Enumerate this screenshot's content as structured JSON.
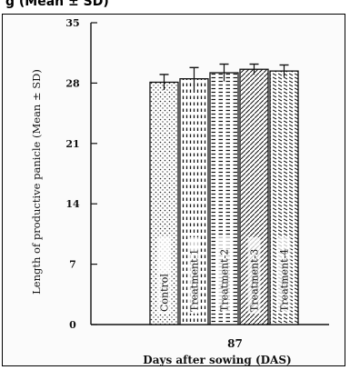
{
  "top_caption": "g (Mean ± SD)",
  "chart_data": {
    "type": "bar",
    "title": "",
    "xlabel": "Days after sowing (DAS)",
    "ylabel": "Length of productive panicle (Mean ± SD)",
    "x_tick": "87",
    "ylim": [
      0,
      35
    ],
    "yticks": [
      "0",
      "7",
      "14",
      "21",
      "28",
      "35"
    ],
    "grid": false,
    "series": [
      {
        "name": "Control",
        "value": 28.1,
        "sd": 0.9
      },
      {
        "name": "Treatment-1",
        "value": 28.5,
        "sd": 1.3
      },
      {
        "name": "Treatment-2",
        "value": 29.2,
        "sd": 1.0
      },
      {
        "name": "Treatment-3",
        "value": 29.6,
        "sd": 0.6
      },
      {
        "name": "Treatment-4",
        "value": 29.4,
        "sd": 0.7
      }
    ],
    "patterns": [
      "dots",
      "dashes-vertical",
      "dashes-horizontal",
      "diagonal-right",
      "diagonal-left"
    ]
  }
}
